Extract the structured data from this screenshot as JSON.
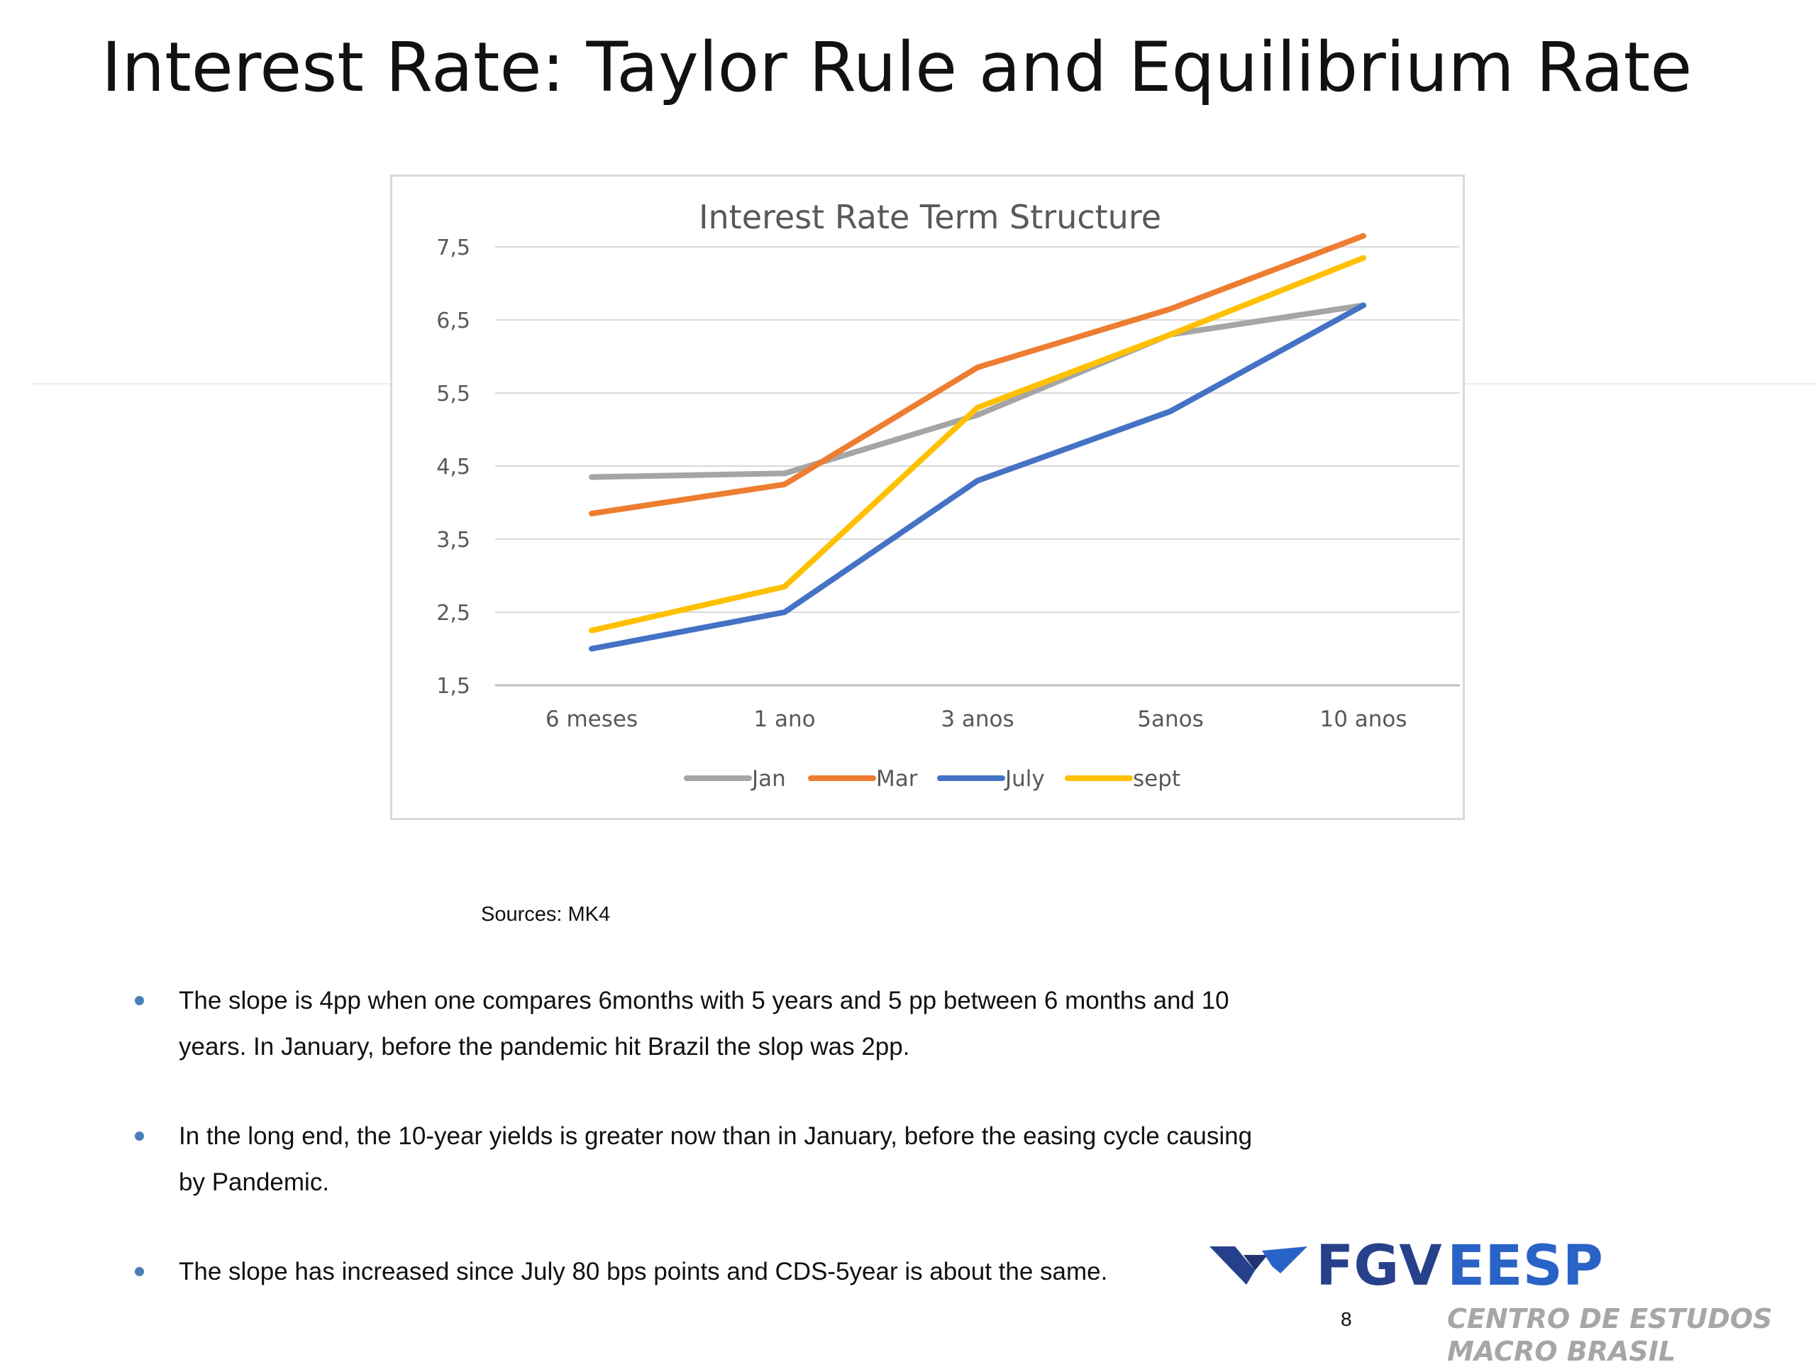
{
  "slide": {
    "title": "Interest Rate: Taylor Rule and Equilibrium Rate",
    "sources": "Sources: MK4",
    "page_number": "8"
  },
  "bullets": [
    "The slope is 4pp when one compares 6months with 5 years and 5 pp between 6 months and 10 years.  In January, before the pandemic hit Brazil the slop was 2pp.",
    "In the long end, the 10-year yields is greater now than in January, before the easing cycle causing by Pandemic.",
    "The slope has increased since July 80 bps points and CDS-5year is about the same."
  ],
  "logo": {
    "brand": "FGV",
    "school": "EESP",
    "subtitle_line1": "CENTRO DE ESTUDOS",
    "subtitle_line2": "MACRO BRASIL",
    "mark_color": "#27408b"
  },
  "chart_data": {
    "type": "line",
    "title": "Interest Rate Term Structure",
    "categories": [
      "6 meses",
      "1 ano",
      "3 anos",
      "5anos",
      "10 anos"
    ],
    "y_ticks": [
      "1,5",
      "2,5",
      "3,5",
      "4,5",
      "5,5",
      "6,5",
      "7,5"
    ],
    "ylim": [
      1.5,
      7.5
    ],
    "grid": true,
    "legend_position": "bottom",
    "series": [
      {
        "name": "Jan",
        "color": "#a5a5a5",
        "values": [
          4.35,
          4.4,
          5.2,
          6.3,
          6.7
        ]
      },
      {
        "name": "Mar",
        "color": "#ed7d31",
        "values": [
          3.85,
          4.25,
          5.85,
          6.65,
          7.65
        ]
      },
      {
        "name": "July",
        "color": "#4472c4",
        "values": [
          2.0,
          2.5,
          4.3,
          5.25,
          6.7
        ]
      },
      {
        "name": "sept",
        "color": "#ffc000",
        "values": [
          2.25,
          2.85,
          5.3,
          6.3,
          7.35
        ]
      }
    ]
  }
}
